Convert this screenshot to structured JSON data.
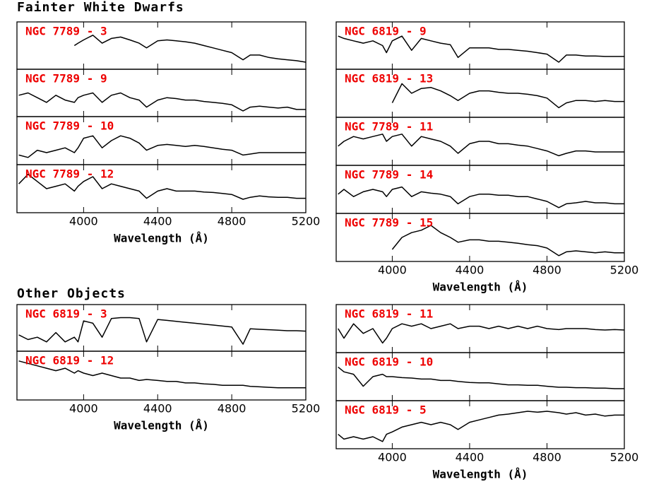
{
  "headings": [
    "Fainter White Dwarfs",
    "Other Objects"
  ],
  "chart_data": [
    {
      "type": "line",
      "title": "NGC 7789 - 3",
      "color": "#000000",
      "xlim": [
        3640,
        5200
      ],
      "ylim": [
        0,
        1
      ],
      "xticks": [
        4000,
        4400,
        4800,
        5200
      ],
      "x": [
        3650,
        3700,
        3750,
        3800,
        3850,
        3900,
        3950,
        3970,
        4000,
        4050,
        4100,
        4150,
        4200,
        4250,
        4300,
        4340,
        4400,
        4450,
        4500,
        4550,
        4600,
        4650,
        4700,
        4750,
        4800,
        4861,
        4900,
        4950,
        5000,
        5050,
        5100,
        5150,
        5200
      ],
      "values": [
        null,
        null,
        null,
        null,
        null,
        null,
        0.5,
        0.55,
        0.62,
        0.72,
        0.55,
        0.65,
        0.68,
        0.62,
        0.55,
        0.45,
        0.6,
        0.62,
        0.6,
        0.58,
        0.55,
        0.5,
        0.45,
        0.4,
        0.35,
        0.2,
        0.3,
        0.3,
        0.25,
        0.22,
        0.2,
        0.18,
        0.15
      ]
    },
    {
      "type": "line",
      "title": "NGC 7789 - 9",
      "color": "#000000",
      "xlim": [
        3640,
        5200
      ],
      "ylim": [
        0,
        1
      ],
      "xticks": [
        4000,
        4400,
        4800,
        5200
      ],
      "x": [
        3650,
        3700,
        3750,
        3800,
        3850,
        3900,
        3950,
        3970,
        4000,
        4050,
        4100,
        4150,
        4200,
        4250,
        4300,
        4340,
        4400,
        4450,
        4500,
        4550,
        4600,
        4650,
        4700,
        4750,
        4800,
        4861,
        4900,
        4950,
        5000,
        5050,
        5100,
        5150,
        5200
      ],
      "values": [
        0.45,
        0.5,
        0.4,
        0.3,
        0.45,
        0.35,
        0.3,
        0.4,
        0.45,
        0.5,
        0.3,
        0.45,
        0.5,
        0.4,
        0.35,
        0.2,
        0.35,
        0.4,
        0.38,
        0.35,
        0.35,
        0.32,
        0.3,
        0.28,
        0.25,
        0.12,
        0.2,
        0.22,
        0.2,
        0.18,
        0.2,
        0.15,
        0.15
      ]
    },
    {
      "type": "line",
      "title": "NGC 7789 - 10",
      "color": "#000000",
      "xlim": [
        3640,
        5200
      ],
      "ylim": [
        0,
        1
      ],
      "xticks": [
        4000,
        4400,
        4800,
        5200
      ],
      "x": [
        3650,
        3700,
        3750,
        3800,
        3850,
        3900,
        3950,
        3970,
        4000,
        4050,
        4100,
        4150,
        4200,
        4250,
        4300,
        4340,
        4400,
        4450,
        4500,
        4550,
        4600,
        4650,
        4700,
        4750,
        4800,
        4861,
        4900,
        4950,
        5000,
        5050,
        5100,
        5150,
        5200
      ],
      "values": [
        0.2,
        0.15,
        0.3,
        0.25,
        0.3,
        0.35,
        0.25,
        0.35,
        0.55,
        0.6,
        0.35,
        0.5,
        0.6,
        0.55,
        0.45,
        0.3,
        0.4,
        0.42,
        0.4,
        0.38,
        0.4,
        0.38,
        0.35,
        0.32,
        0.3,
        0.2,
        0.22,
        0.25,
        0.25,
        0.25,
        0.25,
        0.25,
        0.25
      ]
    },
    {
      "type": "line",
      "title": "NGC 7789 - 12",
      "color": "#000000",
      "xlim": [
        3640,
        5200
      ],
      "ylim": [
        0,
        1
      ],
      "xticks": [
        4000,
        4400,
        4800,
        5200
      ],
      "xlabel": "Wavelength (Å)",
      "x": [
        3650,
        3700,
        3750,
        3800,
        3850,
        3900,
        3950,
        3970,
        4000,
        4050,
        4100,
        4150,
        4200,
        4250,
        4300,
        4340,
        4400,
        4450,
        4500,
        4550,
        4600,
        4650,
        4700,
        4750,
        4800,
        4861,
        4900,
        4950,
        5000,
        5050,
        5100,
        5150,
        5200
      ],
      "values": [
        0.6,
        0.8,
        0.65,
        0.5,
        0.55,
        0.6,
        0.45,
        0.55,
        0.65,
        0.75,
        0.5,
        0.6,
        0.55,
        0.5,
        0.45,
        0.3,
        0.45,
        0.5,
        0.45,
        0.45,
        0.45,
        0.43,
        0.42,
        0.4,
        0.38,
        0.28,
        0.32,
        0.35,
        0.33,
        0.32,
        0.32,
        0.3,
        0.3
      ]
    },
    {
      "type": "line",
      "title": "NGC 6819 - 9",
      "color": "#000000",
      "xlim": [
        3710,
        5200
      ],
      "ylim": [
        0,
        1
      ],
      "xticks": [
        4000,
        4400,
        4800,
        5200
      ],
      "x": [
        3720,
        3750,
        3800,
        3850,
        3900,
        3950,
        3970,
        4000,
        4050,
        4100,
        4150,
        4200,
        4250,
        4300,
        4340,
        4400,
        4450,
        4500,
        4550,
        4600,
        4650,
        4700,
        4750,
        4800,
        4861,
        4900,
        4950,
        5000,
        5050,
        5100,
        5150,
        5200
      ],
      "values": [
        0.7,
        0.65,
        0.6,
        0.55,
        0.6,
        0.5,
        0.35,
        0.6,
        0.7,
        0.4,
        0.65,
        0.6,
        0.55,
        0.52,
        0.25,
        0.45,
        0.45,
        0.45,
        0.42,
        0.42,
        0.4,
        0.38,
        0.35,
        0.32,
        0.15,
        0.3,
        0.3,
        0.28,
        0.28,
        0.27,
        0.27,
        0.27
      ]
    },
    {
      "type": "line",
      "title": "NGC 6819 - 13",
      "color": "#000000",
      "xlim": [
        3710,
        5200
      ],
      "ylim": [
        0,
        1
      ],
      "xticks": [
        4000,
        4400,
        4800,
        5200
      ],
      "x": [
        3720,
        3750,
        3800,
        3850,
        3900,
        3950,
        3970,
        4000,
        4050,
        4100,
        4150,
        4200,
        4250,
        4300,
        4340,
        4400,
        4450,
        4500,
        4550,
        4600,
        4650,
        4700,
        4750,
        4800,
        4861,
        4900,
        4950,
        5000,
        5050,
        5100,
        5150,
        5200
      ],
      "values": [
        null,
        null,
        null,
        null,
        null,
        null,
        null,
        0.3,
        0.7,
        0.5,
        0.6,
        0.62,
        0.55,
        0.45,
        0.35,
        0.5,
        0.55,
        0.55,
        0.52,
        0.5,
        0.5,
        0.48,
        0.45,
        0.4,
        0.2,
        0.3,
        0.35,
        0.35,
        0.33,
        0.35,
        0.33,
        0.33
      ]
    },
    {
      "type": "line",
      "title": "NGC 7789 - 11",
      "color": "#000000",
      "xlim": [
        3710,
        5200
      ],
      "ylim": [
        0,
        1
      ],
      "xticks": [
        4000,
        4400,
        4800,
        5200
      ],
      "x": [
        3720,
        3750,
        3800,
        3850,
        3900,
        3950,
        3970,
        4000,
        4050,
        4100,
        4150,
        4200,
        4250,
        4300,
        4340,
        4400,
        4450,
        4500,
        4550,
        4600,
        4650,
        4700,
        4750,
        4800,
        4861,
        4900,
        4950,
        5000,
        5050,
        5100,
        5150,
        5200
      ],
      "values": [
        0.4,
        0.5,
        0.6,
        0.55,
        0.6,
        0.65,
        0.5,
        0.6,
        0.65,
        0.4,
        0.6,
        0.55,
        0.5,
        0.4,
        0.25,
        0.45,
        0.5,
        0.5,
        0.45,
        0.45,
        0.42,
        0.4,
        0.35,
        0.3,
        0.2,
        0.25,
        0.3,
        0.3,
        0.28,
        0.28,
        0.28,
        0.28
      ]
    },
    {
      "type": "line",
      "title": "NGC 7789 - 14",
      "color": "#000000",
      "xlim": [
        3710,
        5200
      ],
      "ylim": [
        0,
        1
      ],
      "xticks": [
        4000,
        4400,
        4800,
        5200
      ],
      "x": [
        3720,
        3750,
        3800,
        3850,
        3900,
        3950,
        3970,
        4000,
        4050,
        4100,
        4150,
        4200,
        4250,
        4300,
        4340,
        4400,
        4450,
        4500,
        4550,
        4600,
        4650,
        4700,
        4750,
        4800,
        4861,
        4900,
        4950,
        5000,
        5050,
        5100,
        5150,
        5200
      ],
      "values": [
        0.4,
        0.5,
        0.35,
        0.45,
        0.5,
        0.45,
        0.35,
        0.5,
        0.55,
        0.35,
        0.45,
        0.42,
        0.4,
        0.35,
        0.2,
        0.35,
        0.4,
        0.4,
        0.38,
        0.38,
        0.35,
        0.35,
        0.3,
        0.25,
        0.12,
        0.2,
        0.22,
        0.25,
        0.22,
        0.22,
        0.2,
        0.2
      ]
    },
    {
      "type": "line",
      "title": "NGC 7789 - 15",
      "color": "#000000",
      "xlim": [
        3710,
        5200
      ],
      "ylim": [
        0,
        1
      ],
      "xticks": [
        4000,
        4400,
        4800,
        5200
      ],
      "xlabel": "Wavelength (Å)",
      "x": [
        3720,
        3750,
        3800,
        3850,
        3900,
        3950,
        3970,
        4000,
        4050,
        4100,
        4150,
        4200,
        4250,
        4300,
        4340,
        4400,
        4450,
        4500,
        4550,
        4600,
        4650,
        4700,
        4750,
        4800,
        4861,
        4900,
        4950,
        5000,
        5050,
        5100,
        5150,
        5200
      ],
      "values": [
        null,
        null,
        null,
        null,
        null,
        null,
        null,
        0.25,
        0.5,
        0.6,
        0.65,
        0.75,
        0.6,
        0.5,
        0.4,
        0.45,
        0.45,
        0.42,
        0.42,
        0.4,
        0.38,
        0.35,
        0.33,
        0.28,
        0.12,
        0.2,
        0.22,
        0.2,
        0.18,
        0.2,
        0.18,
        0.18
      ]
    },
    {
      "type": "line",
      "title": "NGC 6819 - 3",
      "color": "#000000",
      "xlim": [
        3640,
        5200
      ],
      "ylim": [
        0,
        1
      ],
      "xticks": [
        4000,
        4400,
        4800,
        5200
      ],
      "x": [
        3650,
        3700,
        3750,
        3800,
        3850,
        3900,
        3950,
        3970,
        4000,
        4050,
        4100,
        4150,
        4200,
        4250,
        4300,
        4340,
        4400,
        4450,
        4500,
        4550,
        4600,
        4650,
        4700,
        4750,
        4800,
        4861,
        4900,
        4950,
        5000,
        5050,
        5100,
        5150,
        5200
      ],
      "values": [
        0.35,
        0.25,
        0.3,
        0.2,
        0.4,
        0.2,
        0.3,
        0.2,
        0.65,
        0.6,
        0.3,
        0.7,
        0.72,
        0.72,
        0.7,
        0.2,
        0.68,
        0.66,
        0.64,
        0.62,
        0.6,
        0.58,
        0.56,
        0.54,
        0.52,
        0.15,
        0.48,
        0.47,
        0.46,
        0.45,
        0.44,
        0.44,
        0.43
      ]
    },
    {
      "type": "line",
      "title": "NGC 6819 - 12",
      "color": "#000000",
      "xlim": [
        3640,
        5200
      ],
      "ylim": [
        0,
        1
      ],
      "xticks": [
        4000,
        4400,
        4800,
        5200
      ],
      "xlabel": "Wavelength (Å)",
      "x": [
        3650,
        3700,
        3750,
        3800,
        3850,
        3900,
        3950,
        3970,
        4000,
        4050,
        4100,
        4150,
        4200,
        4250,
        4300,
        4340,
        4400,
        4450,
        4500,
        4550,
        4600,
        4650,
        4700,
        4750,
        4800,
        4861,
        4900,
        4950,
        5000,
        5050,
        5100,
        5150,
        5200
      ],
      "values": [
        0.8,
        0.75,
        0.7,
        0.65,
        0.6,
        0.65,
        0.55,
        0.6,
        0.55,
        0.5,
        0.55,
        0.5,
        0.45,
        0.45,
        0.4,
        0.42,
        0.4,
        0.38,
        0.38,
        0.35,
        0.35,
        0.33,
        0.32,
        0.3,
        0.3,
        0.3,
        0.28,
        0.27,
        0.26,
        0.25,
        0.25,
        0.25,
        0.25
      ]
    },
    {
      "type": "line",
      "title": "NGC 6819 - 11",
      "color": "#000000",
      "xlim": [
        3710,
        5200
      ],
      "ylim": [
        0,
        1
      ],
      "xticks": [
        4000,
        4400,
        4800,
        5200
      ],
      "x": [
        3720,
        3750,
        3800,
        3850,
        3900,
        3950,
        3970,
        4000,
        4050,
        4100,
        4150,
        4200,
        4250,
        4300,
        4340,
        4400,
        4450,
        4500,
        4550,
        4600,
        4650,
        4700,
        4750,
        4800,
        4861,
        4900,
        4950,
        5000,
        5050,
        5100,
        5150,
        5200
      ],
      "values": [
        0.5,
        0.3,
        0.6,
        0.4,
        0.5,
        0.2,
        0.3,
        0.5,
        0.6,
        0.55,
        0.6,
        0.5,
        0.55,
        0.6,
        0.5,
        0.55,
        0.55,
        0.5,
        0.55,
        0.5,
        0.55,
        0.5,
        0.55,
        0.5,
        0.48,
        0.5,
        0.5,
        0.5,
        0.48,
        0.47,
        0.48,
        0.47
      ]
    },
    {
      "type": "line",
      "title": "NGC 6819 - 10",
      "color": "#000000",
      "xlim": [
        3710,
        5200
      ],
      "ylim": [
        0,
        1
      ],
      "xticks": [
        4000,
        4400,
        4800,
        5200
      ],
      "x": [
        3720,
        3750,
        3800,
        3850,
        3900,
        3950,
        3970,
        4000,
        4050,
        4100,
        4150,
        4200,
        4250,
        4300,
        4340,
        4400,
        4450,
        4500,
        4550,
        4600,
        4650,
        4700,
        4750,
        4800,
        4861,
        4900,
        4950,
        5000,
        5050,
        5100,
        5150,
        5200
      ],
      "values": [
        0.7,
        0.6,
        0.55,
        0.3,
        0.5,
        0.55,
        0.5,
        0.5,
        0.48,
        0.47,
        0.45,
        0.45,
        0.42,
        0.42,
        0.4,
        0.38,
        0.37,
        0.37,
        0.35,
        0.33,
        0.33,
        0.32,
        0.32,
        0.3,
        0.28,
        0.28,
        0.27,
        0.27,
        0.26,
        0.26,
        0.25,
        0.25
      ]
    },
    {
      "type": "line",
      "title": "NGC 6819 - 5",
      "color": "#000000",
      "xlim": [
        3710,
        5200
      ],
      "ylim": [
        0,
        1
      ],
      "xticks": [
        4000,
        4400,
        4800,
        5200
      ],
      "xlabel": "Wavelength (Å)",
      "x": [
        3720,
        3750,
        3800,
        3850,
        3900,
        3950,
        3970,
        4000,
        4050,
        4100,
        4150,
        4200,
        4250,
        4300,
        4340,
        4400,
        4450,
        4500,
        4550,
        4600,
        4650,
        4700,
        4750,
        4800,
        4861,
        4900,
        4950,
        5000,
        5050,
        5100,
        5150,
        5200
      ],
      "values": [
        0.3,
        0.2,
        0.25,
        0.2,
        0.25,
        0.15,
        0.3,
        0.35,
        0.45,
        0.5,
        0.55,
        0.5,
        0.55,
        0.5,
        0.4,
        0.55,
        0.6,
        0.65,
        0.7,
        0.72,
        0.75,
        0.78,
        0.76,
        0.78,
        0.75,
        0.72,
        0.75,
        0.7,
        0.72,
        0.68,
        0.7,
        0.7
      ]
    }
  ]
}
